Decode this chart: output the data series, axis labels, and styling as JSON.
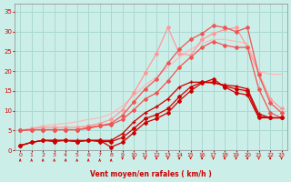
{
  "title": "",
  "xlabel": "Vent moyen/en rafales ( km/h )",
  "ylabel": "",
  "background_color": "#cceee8",
  "grid_color": "#aad8d2",
  "xlim": [
    -0.5,
    23.5
  ],
  "ylim": [
    0,
    37
  ],
  "yticks": [
    0,
    5,
    10,
    15,
    20,
    25,
    30,
    35
  ],
  "xticks": [
    0,
    1,
    2,
    3,
    4,
    5,
    6,
    7,
    8,
    9,
    10,
    11,
    12,
    13,
    14,
    15,
    16,
    17,
    18,
    19,
    20,
    21,
    22,
    23
  ],
  "series": [
    {
      "x": [
        0,
        1,
        2,
        3,
        4,
        5,
        6,
        7,
        8,
        9,
        10,
        11,
        12,
        13,
        14,
        15,
        16,
        17,
        18,
        19,
        20,
        21,
        22,
        23
      ],
      "y": [
        1.2,
        2.0,
        2.5,
        2.2,
        2.5,
        2.2,
        2.5,
        2.5,
        0.8,
        2.0,
        4.5,
        7.0,
        8.0,
        9.5,
        12.5,
        15.0,
        17.0,
        18.0,
        16.0,
        14.5,
        14.0,
        8.2,
        8.2,
        8.2
      ],
      "color": "#cc0000",
      "lw": 0.9,
      "marker": "D",
      "markersize": 2.0,
      "zorder": 4
    },
    {
      "x": [
        0,
        1,
        2,
        3,
        4,
        5,
        6,
        7,
        8,
        9,
        10,
        11,
        12,
        13,
        14,
        15,
        16,
        17,
        18,
        19,
        20,
        21,
        22,
        23
      ],
      "y": [
        1.2,
        2.0,
        2.5,
        2.5,
        2.5,
        2.2,
        2.5,
        2.2,
        2.2,
        3.2,
        5.5,
        8.0,
        9.0,
        10.5,
        13.5,
        16.0,
        17.2,
        17.2,
        16.2,
        15.5,
        15.0,
        8.5,
        8.2,
        8.2
      ],
      "color": "#cc0000",
      "lw": 0.9,
      "marker": "D",
      "markersize": 2.0,
      "zorder": 4
    },
    {
      "x": [
        0,
        1,
        2,
        3,
        4,
        5,
        6,
        7,
        8,
        9,
        10,
        11,
        12,
        13,
        14,
        15,
        16,
        17,
        18,
        19,
        20,
        21,
        22,
        23
      ],
      "y": [
        1.2,
        2.0,
        2.5,
        2.5,
        2.5,
        2.5,
        2.5,
        2.5,
        2.5,
        4.2,
        7.2,
        9.5,
        11.0,
        13.0,
        16.0,
        17.2,
        17.2,
        17.0,
        16.5,
        16.2,
        15.5,
        9.2,
        8.2,
        8.2
      ],
      "color": "#cc0000",
      "lw": 0.9,
      "marker": "+",
      "markersize": 3.5,
      "zorder": 4
    },
    {
      "x": [
        0,
        1,
        2,
        3,
        4,
        5,
        6,
        7,
        8,
        9,
        10,
        11,
        12,
        13,
        14,
        15,
        16,
        17,
        18,
        19,
        20,
        21,
        22,
        23
      ],
      "y": [
        5.0,
        5.2,
        5.2,
        5.2,
        5.2,
        5.2,
        5.5,
        6.2,
        6.5,
        7.8,
        10.2,
        13.0,
        14.5,
        17.5,
        21.0,
        23.5,
        26.0,
        27.5,
        26.5,
        26.0,
        26.0,
        15.5,
        9.5,
        8.2
      ],
      "color": "#ee5555",
      "lw": 0.9,
      "marker": "D",
      "markersize": 2.0,
      "zorder": 3
    },
    {
      "x": [
        0,
        1,
        2,
        3,
        4,
        5,
        6,
        7,
        8,
        9,
        10,
        11,
        12,
        13,
        14,
        15,
        16,
        17,
        18,
        19,
        20,
        21,
        22,
        23
      ],
      "y": [
        5.0,
        5.2,
        5.2,
        5.2,
        5.2,
        5.2,
        5.8,
        6.2,
        6.8,
        8.8,
        12.2,
        15.5,
        18.0,
        22.0,
        25.5,
        28.0,
        29.5,
        31.5,
        31.0,
        30.0,
        31.0,
        19.0,
        12.0,
        9.5
      ],
      "color": "#ee5555",
      "lw": 0.9,
      "marker": "D",
      "markersize": 2.0,
      "zorder": 3
    },
    {
      "x": [
        0,
        1,
        2,
        3,
        4,
        5,
        6,
        7,
        8,
        9,
        10,
        11,
        12,
        13,
        14,
        15,
        16,
        17,
        18,
        19,
        20,
        21,
        22,
        23
      ],
      "y": [
        5.0,
        5.5,
        5.8,
        5.8,
        5.8,
        5.8,
        6.2,
        6.8,
        7.8,
        10.2,
        14.5,
        19.5,
        24.5,
        31.0,
        24.5,
        24.0,
        28.0,
        29.5,
        30.5,
        31.0,
        26.0,
        19.5,
        13.0,
        10.5
      ],
      "color": "#ff9999",
      "lw": 0.9,
      "marker": "D",
      "markersize": 2.0,
      "zorder": 2
    },
    {
      "x": [
        0,
        1,
        2,
        3,
        4,
        5,
        6,
        7,
        8,
        9,
        10,
        11,
        12,
        13,
        14,
        15,
        16,
        17,
        18,
        19,
        20,
        21,
        22,
        23
      ],
      "y": [
        5.0,
        5.5,
        6.2,
        6.5,
        6.8,
        7.2,
        7.8,
        8.2,
        9.2,
        11.2,
        13.8,
        16.5,
        18.5,
        21.0,
        23.5,
        25.5,
        27.0,
        28.0,
        28.0,
        27.5,
        27.0,
        20.0,
        19.2,
        19.2
      ],
      "color": "#ffb8b8",
      "lw": 0.9,
      "marker": null,
      "markersize": 0,
      "zorder": 1
    }
  ],
  "wind_dirs_up": [
    0,
    1,
    2,
    3,
    4,
    5,
    6,
    7,
    8
  ],
  "wind_dirs_down": [
    9,
    10,
    11,
    12,
    13,
    14,
    15,
    16,
    17,
    18,
    19,
    20,
    21,
    22,
    23
  ]
}
